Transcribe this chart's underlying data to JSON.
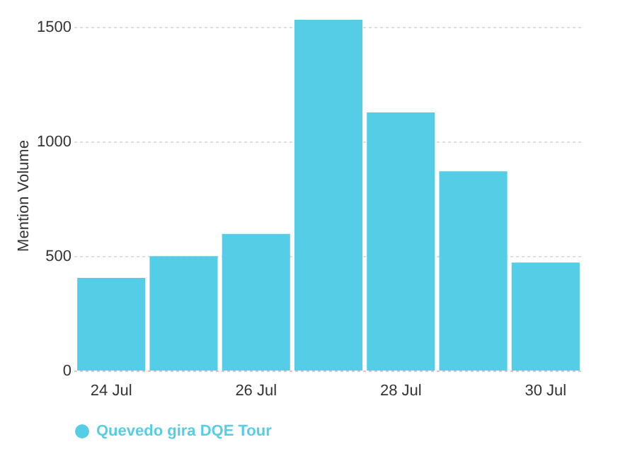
{
  "chart_data": {
    "type": "bar",
    "ylabel": "Mention Volume",
    "categories": [
      "24 Jul",
      null,
      "26 Jul",
      null,
      "28 Jul",
      null,
      "30 Jul"
    ],
    "series": [
      {
        "name": "Quevedo gira DQE Tour",
        "color": "#56cde6",
        "values": [
          404,
          499,
          596,
          1530,
          1126,
          869,
          471
        ]
      }
    ],
    "ylim": [
      0,
      1530
    ],
    "yticks": [
      0,
      500,
      1000,
      1500
    ],
    "grid": "y",
    "legend": "bottom"
  }
}
